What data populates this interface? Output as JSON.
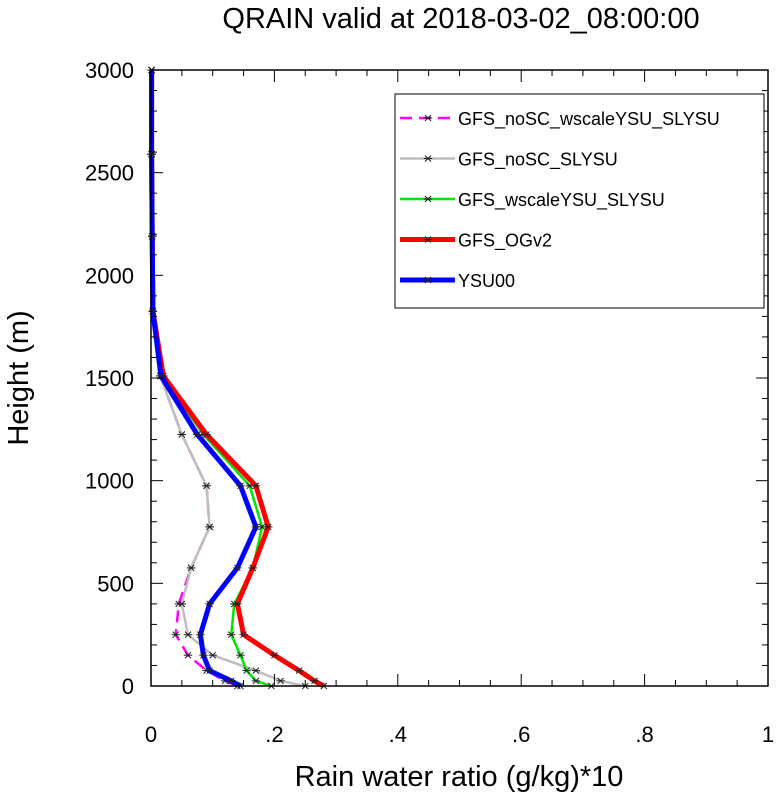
{
  "chart_data": {
    "type": "line",
    "title": "QRAIN valid at 2018-03-02_08:00:00",
    "xlabel": "Rain water ratio (g/kg)*10",
    "ylabel": "Height (m)",
    "xlim": [
      0,
      1
    ],
    "ylim": [
      0,
      3000
    ],
    "x_ticks": [
      0,
      0.2,
      0.4,
      0.6,
      0.8,
      1
    ],
    "x_tick_labels": [
      "0",
      ".2",
      ".4",
      ".6",
      ".8",
      "1"
    ],
    "y_ticks": [
      0,
      500,
      1000,
      1500,
      2000,
      2500,
      3000
    ],
    "y_tick_labels": [
      "0",
      "500",
      "1000",
      "1500",
      "2000",
      "2500",
      "3000"
    ],
    "grid": false,
    "legend_position": "top-right",
    "heights": [
      0,
      25,
      75,
      150,
      250,
      400,
      575,
      775,
      975,
      1225,
      1510,
      1825,
      2190,
      2590,
      3000
    ],
    "series": [
      {
        "name": "GFS_noSC_wscaleYSU_SLYSU",
        "color": "#ff00ff",
        "dashed": true,
        "line_width": 2.5,
        "values": [
          0.14,
          0.12,
          0.09,
          0.06,
          0.04,
          0.045,
          0.065,
          0.095,
          0.09,
          0.05,
          0.015,
          0.003,
          0.002,
          0.001,
          0.001
        ]
      },
      {
        "name": "GFS_noSC_SLYSU",
        "color": "#bebebe",
        "dashed": false,
        "line_width": 2.5,
        "values": [
          0.25,
          0.21,
          0.17,
          0.1,
          0.06,
          0.05,
          0.065,
          0.095,
          0.09,
          0.05,
          0.015,
          0.003,
          0.002,
          0.001,
          0.001
        ]
      },
      {
        "name": "GFS_wscaleYSU_SLYSU",
        "color": "#00e600",
        "dashed": false,
        "line_width": 2.5,
        "values": [
          0.195,
          0.17,
          0.155,
          0.145,
          0.13,
          0.135,
          0.165,
          0.18,
          0.16,
          0.085,
          0.018,
          0.003,
          0.002,
          0.001,
          0.001
        ]
      },
      {
        "name": "GFS_OGv2",
        "color": "#ff0000",
        "dashed": false,
        "line_width": 5,
        "values": [
          0.28,
          0.265,
          0.24,
          0.2,
          0.15,
          0.14,
          0.165,
          0.19,
          0.17,
          0.09,
          0.02,
          0.003,
          0.002,
          0.001,
          0.001
        ]
      },
      {
        "name": "YSU00",
        "color": "#0000ff",
        "dashed": false,
        "line_width": 5,
        "values": [
          0.145,
          0.13,
          0.095,
          0.085,
          0.08,
          0.095,
          0.14,
          0.17,
          0.145,
          0.075,
          0.016,
          0.003,
          0.002,
          0.001,
          0.001
        ]
      }
    ]
  }
}
